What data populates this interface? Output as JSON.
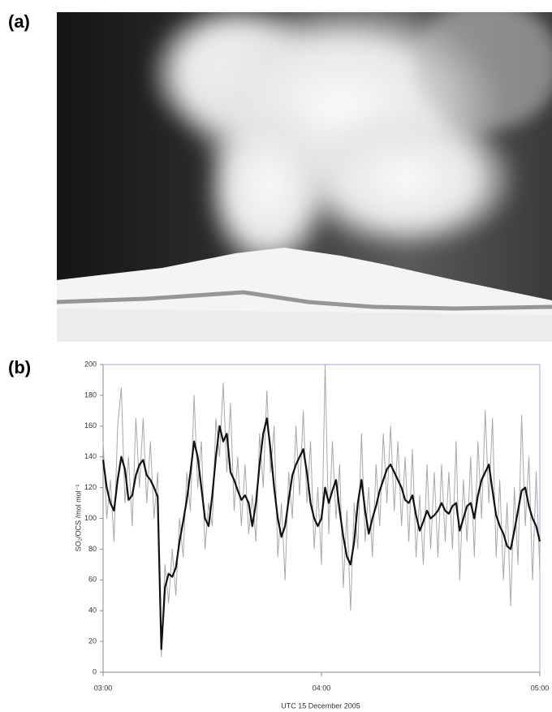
{
  "panel_a": {
    "label": "(a)"
  },
  "chart_data": {
    "type": "line",
    "panel_label": "(b)",
    "x_label": "UTC 15 December 2005",
    "y_label": "SO₂/OCS /mol mol⁻¹",
    "x": [
      "03:00",
      "03:01",
      "03:02",
      "03:03",
      "03:04",
      "03:05",
      "03:06",
      "03:07",
      "03:08",
      "03:09",
      "03:10",
      "03:11",
      "03:12",
      "03:13",
      "03:14",
      "03:15",
      "03:16",
      "03:17",
      "03:18",
      "03:19",
      "03:20",
      "03:21",
      "03:22",
      "03:23",
      "03:24",
      "03:25",
      "03:26",
      "03:27",
      "03:28",
      "03:29",
      "03:30",
      "03:31",
      "03:32",
      "03:33",
      "03:34",
      "03:35",
      "03:36",
      "03:37",
      "03:38",
      "03:39",
      "03:40",
      "03:41",
      "03:42",
      "03:43",
      "03:44",
      "03:45",
      "03:46",
      "03:47",
      "03:48",
      "03:49",
      "03:50",
      "03:51",
      "03:52",
      "03:53",
      "03:54",
      "03:55",
      "03:56",
      "03:57",
      "03:58",
      "03:59",
      "04:00",
      "04:01",
      "04:02",
      "04:03",
      "04:04",
      "04:05",
      "04:06",
      "04:07",
      "04:08",
      "04:09",
      "04:10",
      "04:11",
      "04:12",
      "04:13",
      "04:14",
      "04:15",
      "04:16",
      "04:17",
      "04:18",
      "04:19",
      "04:20",
      "04:21",
      "04:22",
      "04:23",
      "04:24",
      "04:25",
      "04:26",
      "04:27",
      "04:28",
      "04:29",
      "04:30",
      "04:31",
      "04:32",
      "04:33",
      "04:34",
      "04:35",
      "04:36",
      "04:37",
      "04:38",
      "04:39",
      "04:40",
      "04:41",
      "04:42",
      "04:43",
      "04:44",
      "04:45",
      "04:46",
      "04:47",
      "04:48",
      "04:49",
      "04:50",
      "04:51",
      "04:52",
      "04:53",
      "04:54",
      "04:55",
      "04:56",
      "04:57",
      "04:58",
      "04:59",
      "05:00"
    ],
    "series": [
      {
        "color": "#a8a8a8",
        "width": 1,
        "values": [
          150,
          100,
          125,
          85,
          160,
          185,
          110,
          140,
          95,
          165,
          120,
          165,
          110,
          150,
          100,
          130,
          10,
          70,
          45,
          80,
          50,
          100,
          75,
          130,
          105,
          180,
          120,
          150,
          80,
          110,
          95,
          165,
          140,
          188,
          130,
          175,
          105,
          140,
          95,
          135,
          90,
          115,
          85,
          155,
          120,
          183,
          130,
          160,
          75,
          110,
          60,
          130,
          100,
          160,
          115,
          170,
          110,
          150,
          80,
          120,
          70,
          200,
          90,
          150,
          100,
          135,
          55,
          105,
          40,
          110,
          80,
          155,
          85,
          120,
          75,
          135,
          95,
          155,
          110,
          160,
          105,
          150,
          95,
          140,
          85,
          145,
          75,
          115,
          70,
          135,
          80,
          130,
          75,
          135,
          85,
          130,
          80,
          150,
          60,
          125,
          85,
          140,
          75,
          150,
          100,
          170,
          110,
          165,
          75,
          125,
          60,
          110,
          43,
          120,
          70,
          167,
          95,
          140,
          60,
          130,
          65
        ]
      },
      {
        "color": "#111111",
        "width": 2.2,
        "values": [
          138,
          120,
          110,
          105,
          125,
          140,
          132,
          112,
          115,
          128,
          135,
          138,
          128,
          125,
          120,
          114,
          15,
          55,
          64,
          62,
          68,
          85,
          98,
          112,
          130,
          150,
          140,
          120,
          100,
          95,
          115,
          140,
          160,
          150,
          155,
          130,
          125,
          118,
          112,
          115,
          110,
          95,
          110,
          135,
          155,
          165,
          145,
          120,
          100,
          88,
          95,
          112,
          128,
          135,
          140,
          145,
          130,
          110,
          100,
          95,
          100,
          120,
          110,
          118,
          125,
          105,
          88,
          75,
          70,
          85,
          110,
          125,
          105,
          90,
          100,
          108,
          118,
          125,
          132,
          135,
          130,
          125,
          120,
          112,
          110,
          115,
          102,
          92,
          98,
          105,
          100,
          102,
          105,
          110,
          105,
          103,
          108,
          110,
          92,
          100,
          108,
          110,
          100,
          115,
          125,
          130,
          135,
          118,
          102,
          95,
          90,
          82,
          80,
          92,
          105,
          118,
          120,
          108,
          100,
          95,
          85
        ]
      }
    ],
    "xlim": [
      "03:00",
      "05:00"
    ],
    "xticks": [
      "03:00",
      "04:00",
      "05:00"
    ],
    "ylim": [
      0,
      200
    ],
    "yticks": [
      0,
      20,
      40,
      60,
      80,
      100,
      120,
      140,
      160,
      180,
      200
    ]
  }
}
